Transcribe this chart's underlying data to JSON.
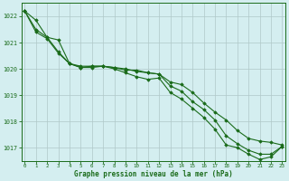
{
  "x": [
    0,
    1,
    2,
    3,
    4,
    5,
    6,
    7,
    8,
    9,
    10,
    11,
    12,
    13,
    14,
    15,
    16,
    17,
    18,
    19,
    20,
    21,
    22,
    23
  ],
  "line1": [
    1022.2,
    1021.85,
    1021.2,
    1021.1,
    1020.2,
    1020.1,
    1020.1,
    1020.1,
    1020.05,
    1019.95,
    1019.95,
    1019.85,
    1019.8,
    1019.35,
    1019.15,
    1018.75,
    1018.45,
    1018.05,
    1017.45,
    1017.15,
    1016.9,
    1016.75,
    1016.75,
    1017.05
  ],
  "line2": [
    1022.2,
    1021.5,
    1021.2,
    1020.65,
    1020.2,
    1020.05,
    1020.1,
    1020.1,
    1020.05,
    1020.0,
    1019.9,
    1019.85,
    1019.8,
    1019.5,
    1019.4,
    1019.1,
    1018.7,
    1018.35,
    1018.05,
    1017.65,
    1017.35,
    1017.25,
    1017.2,
    1017.1
  ],
  "line3": [
    1022.2,
    1021.4,
    1021.15,
    1020.6,
    1020.2,
    1020.05,
    1020.05,
    1020.1,
    1020.0,
    1019.85,
    1019.7,
    1019.6,
    1019.65,
    1019.1,
    1018.85,
    1018.5,
    1018.15,
    1017.7,
    1017.1,
    1017.0,
    1016.75,
    1016.55,
    1016.65,
    1017.05
  ],
  "ylim": [
    1016.5,
    1022.5
  ],
  "yticks": [
    1017,
    1018,
    1019,
    1020,
    1021,
    1022
  ],
  "xlim": [
    -0.3,
    23.3
  ],
  "xticks": [
    0,
    1,
    2,
    3,
    4,
    5,
    6,
    7,
    8,
    9,
    10,
    11,
    12,
    13,
    14,
    15,
    16,
    17,
    18,
    19,
    20,
    21,
    22,
    23
  ],
  "xlabel": "Graphe pression niveau de la mer (hPa)",
  "line_color": "#1a6b1a",
  "marker": "D",
  "markersize": 1.8,
  "background_color": "#d4eef0",
  "grid_major_color": "#b0c8c8",
  "grid_minor_color": "#c8e0e0",
  "axis_color": "#1a6b1a",
  "tick_color": "#1a6b1a",
  "xlabel_color": "#1a6b1a",
  "linewidth": 0.8
}
